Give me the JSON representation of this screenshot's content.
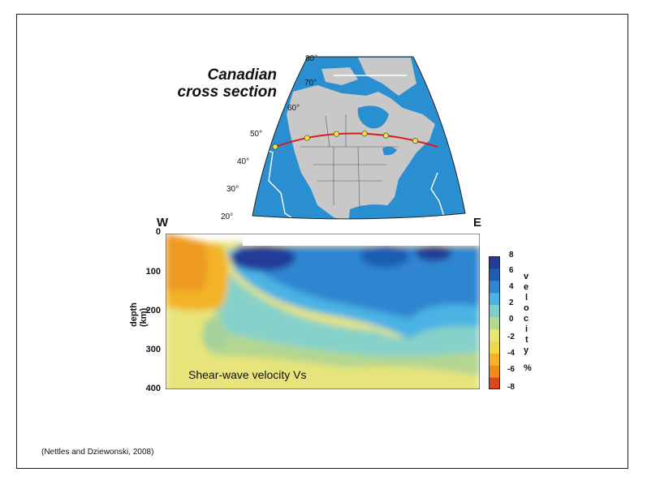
{
  "map": {
    "title_line1": "Canadian",
    "title_line2": "cross section",
    "latitude_labels": [
      "80°",
      "70°",
      "60°",
      "50°",
      "40°",
      "30°",
      "20°"
    ],
    "ocean_color": "#2a8fd0",
    "land_color": "#c8c8c8",
    "profile_color": "#d81e1e",
    "station_color": "#f2e23a",
    "station_count": 6
  },
  "section": {
    "west_label": "W",
    "east_label": "E",
    "y_label_line1": "depth",
    "y_label_line2": "(km)",
    "y_ticks": [
      "0",
      "100",
      "200",
      "300",
      "400"
    ],
    "y_range_km": [
      0,
      400
    ],
    "caption": "Shear-wave velocity Vs"
  },
  "colorbar": {
    "ticks": [
      "8",
      "6",
      "4",
      "2",
      "0",
      "-2",
      "-4",
      "-6",
      "-8"
    ],
    "label_letters": [
      "v",
      "e",
      "l",
      "o",
      "c",
      "i",
      "t",
      "y",
      "%"
    ],
    "range_percent": [
      -8,
      8
    ],
    "colors": [
      "#e0461e",
      "#ee8a20",
      "#f2b425",
      "#f0d84c",
      "#e8e477",
      "#b4d88f",
      "#7ecfc8",
      "#49b3e4",
      "#2e86d0",
      "#1f5db4",
      "#213d97"
    ]
  },
  "credit": "(Nettles and Dziewonski, 2008)"
}
